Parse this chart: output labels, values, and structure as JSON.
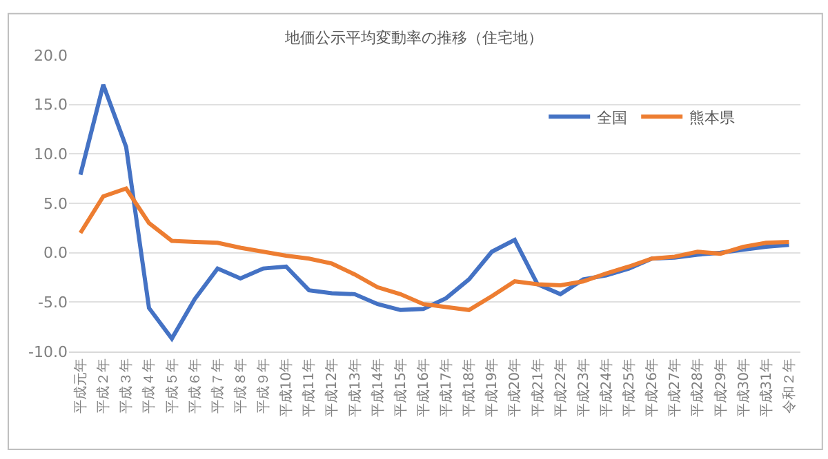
{
  "chart_data": {
    "type": "line",
    "title": "地価公示平均変動率の推移（住宅地）",
    "categories": [
      "平成元年",
      "平成２年",
      "平成３年",
      "平成４年",
      "平成５年",
      "平成６年",
      "平成７年",
      "平成８年",
      "平成９年",
      "平成10年",
      "平成11年",
      "平成12年",
      "平成13年",
      "平成14年",
      "平成15年",
      "平成16年",
      "平成17年",
      "平成18年",
      "平成19年",
      "平成20年",
      "平成21年",
      "平成22年",
      "平成23年",
      "平成24年",
      "平成25年",
      "平成26年",
      "平成27年",
      "平成28年",
      "平成29年",
      "平成30年",
      "平成31年",
      "令和２年"
    ],
    "series": [
      {
        "name": "全国",
        "color": "#4472c4",
        "values": [
          7.9,
          17.0,
          10.7,
          -5.6,
          -8.7,
          -4.7,
          -1.6,
          -2.6,
          -1.6,
          -1.4,
          -3.8,
          -4.1,
          -4.2,
          -5.2,
          -5.8,
          -5.7,
          -4.6,
          -2.7,
          0.1,
          1.3,
          -3.2,
          -4.2,
          -2.7,
          -2.3,
          -1.6,
          -0.6,
          -0.5,
          -0.2,
          0.0,
          0.3,
          0.6,
          0.8
        ]
      },
      {
        "name": "熊本県",
        "color": "#ed7d31",
        "values": [
          2.0,
          5.7,
          6.5,
          3.0,
          1.2,
          1.1,
          1.0,
          0.5,
          0.1,
          -0.3,
          -0.6,
          -1.1,
          -2.2,
          -3.5,
          -4.2,
          -5.2,
          -5.5,
          -5.8,
          -4.4,
          -2.9,
          -3.2,
          -3.3,
          -2.9,
          -2.1,
          -1.4,
          -0.6,
          -0.4,
          0.1,
          -0.1,
          0.6,
          1.0,
          1.1
        ]
      }
    ],
    "ylim": [
      -10,
      20
    ],
    "yticks": [
      {
        "value": -10,
        "label": "-10.0"
      },
      {
        "value": -5,
        "label": "-5.0"
      },
      {
        "value": 0,
        "label": "0.0"
      },
      {
        "value": 5,
        "label": "5.0"
      },
      {
        "value": 10,
        "label": "10.0"
      },
      {
        "value": 15,
        "label": "15.0"
      },
      {
        "value": 20,
        "label": "20.0"
      }
    ],
    "grid": "y",
    "legend": "top right",
    "marker": "none",
    "line_style": "solid"
  }
}
